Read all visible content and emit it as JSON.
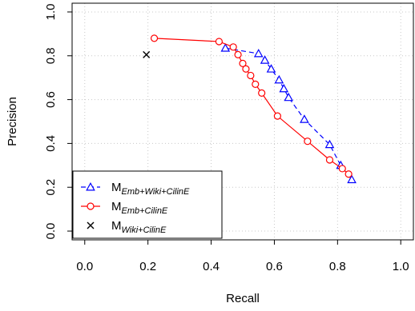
{
  "chart_data": {
    "type": "line",
    "title": "",
    "xlabel": "Recall",
    "ylabel": "Precision",
    "xlim": [
      -0.04,
      1.04
    ],
    "ylim": [
      -0.04,
      1.04
    ],
    "xticks": [
      "0.0",
      "0.2",
      "0.4",
      "0.6",
      "0.8",
      "1.0"
    ],
    "yticks": [
      "0.0",
      "0.2",
      "0.4",
      "0.6",
      "0.8",
      "1.0"
    ],
    "grid": true,
    "legend_position": "bottom-left",
    "series": [
      {
        "name": "M",
        "name_sub": "Emb+Wiki+CilinE",
        "color": "#0000ff",
        "marker": "triangle",
        "line": "dashed",
        "points": [
          [
            0.445,
            0.835
          ],
          [
            0.55,
            0.81
          ],
          [
            0.57,
            0.78
          ],
          [
            0.59,
            0.74
          ],
          [
            0.615,
            0.69
          ],
          [
            0.63,
            0.65
          ],
          [
            0.645,
            0.61
          ],
          [
            0.695,
            0.51
          ],
          [
            0.775,
            0.395
          ],
          [
            0.81,
            0.3
          ],
          [
            0.845,
            0.235
          ]
        ]
      },
      {
        "name": "M",
        "name_sub": "Emb+CilinE",
        "color": "#ff0000",
        "marker": "circle",
        "line": "solid",
        "points": [
          [
            0.22,
            0.88
          ],
          [
            0.425,
            0.865
          ],
          [
            0.47,
            0.84
          ],
          [
            0.485,
            0.805
          ],
          [
            0.5,
            0.765
          ],
          [
            0.51,
            0.74
          ],
          [
            0.525,
            0.71
          ],
          [
            0.54,
            0.67
          ],
          [
            0.56,
            0.63
          ],
          [
            0.61,
            0.525
          ],
          [
            0.705,
            0.41
          ],
          [
            0.775,
            0.325
          ],
          [
            0.815,
            0.285
          ],
          [
            0.835,
            0.26
          ]
        ]
      },
      {
        "name": "M",
        "name_sub": "Wiki+CilinE",
        "color": "#000000",
        "marker": "cross",
        "line": "none",
        "points": [
          [
            0.195,
            0.805
          ]
        ]
      }
    ]
  }
}
